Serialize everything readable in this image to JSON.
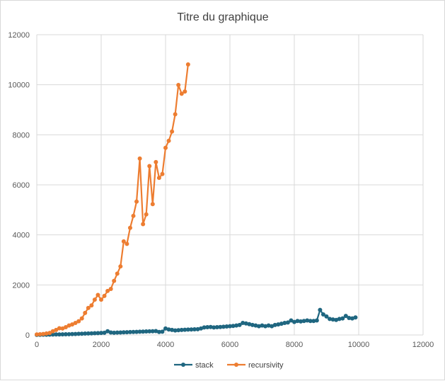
{
  "chart_data": {
    "type": "line",
    "title": "Titre du graphique",
    "xlabel": "",
    "ylabel": "",
    "xlim": [
      0,
      12000
    ],
    "ylim": [
      0,
      12000
    ],
    "xticks": [
      0,
      2000,
      4000,
      6000,
      8000,
      10000,
      12000
    ],
    "yticks": [
      0,
      2000,
      4000,
      6000,
      8000,
      10000,
      12000
    ],
    "grid": true,
    "legend_position": "bottom",
    "series": [
      {
        "name": "stack",
        "color": "#1f6680",
        "x": [
          0,
          100,
          200,
          300,
          400,
          500,
          600,
          700,
          800,
          900,
          1000,
          1100,
          1200,
          1300,
          1400,
          1500,
          1600,
          1700,
          1800,
          1900,
          2000,
          2100,
          2200,
          2300,
          2400,
          2500,
          2600,
          2700,
          2800,
          2900,
          3000,
          3100,
          3200,
          3300,
          3400,
          3500,
          3600,
          3700,
          3800,
          3900,
          4000,
          4100,
          4200,
          4300,
          4400,
          4500,
          4600,
          4700,
          4800,
          4900,
          5000,
          5100,
          5200,
          5300,
          5400,
          5500,
          5600,
          5700,
          5800,
          5900,
          6000,
          6100,
          6200,
          6300,
          6400,
          6500,
          6600,
          6700,
          6800,
          6900,
          7000,
          7100,
          7200,
          7300,
          7400,
          7500,
          7600,
          7700,
          7800,
          7900,
          8000,
          8100,
          8200,
          8300,
          8400,
          8500,
          8600,
          8700,
          8800,
          8900,
          9000,
          9100,
          9200,
          9300,
          9400,
          9500,
          9600,
          9700,
          9800,
          9900
        ],
        "values": [
          5,
          8,
          10,
          12,
          15,
          18,
          20,
          22,
          25,
          28,
          30,
          35,
          40,
          45,
          50,
          55,
          60,
          65,
          70,
          75,
          80,
          90,
          150,
          100,
          90,
          95,
          100,
          105,
          110,
          115,
          120,
          125,
          130,
          135,
          140,
          145,
          150,
          155,
          120,
          130,
          260,
          220,
          200,
          180,
          190,
          200,
          210,
          215,
          220,
          225,
          230,
          260,
          300,
          310,
          320,
          300,
          310,
          320,
          330,
          340,
          350,
          360,
          380,
          400,
          480,
          460,
          430,
          400,
          380,
          350,
          380,
          350,
          380,
          350,
          400,
          420,
          450,
          480,
          500,
          580,
          520,
          560,
          540,
          560,
          580,
          560,
          560,
          580,
          1000,
          820,
          740,
          640,
          620,
          600,
          640,
          660,
          760,
          680,
          660,
          700
        ]
      },
      {
        "name": "recursivity",
        "color": "#ed7d31",
        "x": [
          0,
          100,
          200,
          300,
          400,
          500,
          600,
          700,
          800,
          900,
          1000,
          1100,
          1200,
          1300,
          1400,
          1500,
          1600,
          1700,
          1800,
          1900,
          2000,
          2100,
          2200,
          2300,
          2400,
          2500,
          2600,
          2700,
          2800,
          2900,
          3000,
          3100,
          3200,
          3300,
          3400,
          3500,
          3600,
          3700,
          3800,
          3900,
          4000,
          4100,
          4200,
          4300,
          4400,
          4500,
          4600,
          4700
        ],
        "values": [
          20,
          30,
          40,
          60,
          80,
          150,
          200,
          270,
          260,
          310,
          380,
          420,
          480,
          550,
          660,
          880,
          1080,
          1180,
          1410,
          1600,
          1410,
          1560,
          1760,
          1840,
          2160,
          2450,
          2740,
          3740,
          3640,
          4280,
          4760,
          5330,
          7050,
          4430,
          4820,
          6750,
          5230,
          6910,
          6280,
          6430,
          7480,
          7760,
          8130,
          8820,
          9990,
          9640,
          9730,
          10810
        ]
      }
    ]
  }
}
